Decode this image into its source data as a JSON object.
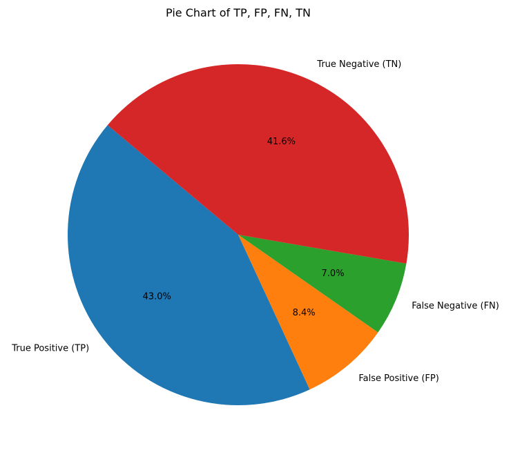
{
  "chart_data": {
    "type": "pie",
    "title": "Pie Chart of TP, FP, FN, TN",
    "labels": [
      "True Positive (TP)",
      "False Positive (FP)",
      "False Negative (FN)",
      "True Negative (TN)"
    ],
    "values": [
      43.0,
      8.4,
      7.0,
      41.6
    ],
    "percent_labels": [
      "43.0%",
      "8.4%",
      "7.0%",
      "41.6%"
    ],
    "colors": [
      "#1f77b4",
      "#ff7f0e",
      "#2ca02c",
      "#d62728"
    ],
    "start_angle_deg": 140,
    "direction": "counterclockwise",
    "legend": "none"
  }
}
